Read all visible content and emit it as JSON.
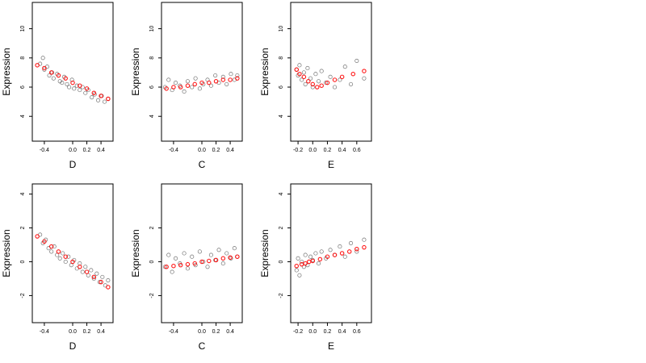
{
  "figure": {
    "ylabel": "Expression",
    "colors": {
      "observed": "#000000",
      "fitted": "#ff0000",
      "axis": "#000000",
      "background": "#ffffff"
    }
  },
  "chart_data": [
    {
      "type": "scatter",
      "xlabel": "D",
      "ylabel": "Expression",
      "xlim": [
        -0.57,
        0.57
      ],
      "ylim": [
        2.3,
        11.8
      ],
      "xticks": [
        -0.4,
        0.0,
        0.2,
        0.4
      ],
      "xtick_labels": [
        "-0.4",
        "0.0",
        "0.2",
        "0.4"
      ],
      "yticks": [
        4,
        6,
        8,
        10
      ],
      "ytick_labels": [
        "4",
        "6",
        "8",
        "10"
      ],
      "series": [
        {
          "kind": "observed",
          "x": [
            -0.46,
            -0.42,
            -0.4,
            -0.36,
            -0.33,
            -0.29,
            -0.27,
            -0.22,
            -0.18,
            -0.15,
            -0.12,
            -0.08,
            -0.05,
            -0.01,
            0.02,
            0.06,
            0.1,
            0.14,
            0.18,
            0.22,
            0.27,
            0.31,
            0.36,
            0.41,
            0.45,
            0.5
          ],
          "y": [
            7.6,
            8.0,
            7.2,
            7.4,
            6.8,
            7.0,
            6.6,
            6.9,
            6.4,
            6.3,
            6.7,
            6.2,
            6.0,
            6.5,
            5.9,
            6.1,
            5.8,
            6.0,
            5.6,
            5.8,
            5.3,
            5.5,
            5.1,
            5.4,
            5.0,
            5.2
          ]
        },
        {
          "kind": "fitted",
          "x": [
            -0.5,
            -0.4,
            -0.3,
            -0.2,
            -0.1,
            0.0,
            0.1,
            0.2,
            0.3,
            0.4,
            0.5
          ],
          "y": [
            7.5,
            7.3,
            7.0,
            6.8,
            6.6,
            6.3,
            6.1,
            5.9,
            5.6,
            5.4,
            5.2
          ]
        }
      ]
    },
    {
      "type": "scatter",
      "xlabel": "C",
      "ylabel": "Expression",
      "xlim": [
        -0.57,
        0.57
      ],
      "ylim": [
        2.3,
        11.8
      ],
      "xticks": [
        -0.4,
        0.0,
        0.2,
        0.4
      ],
      "xtick_labels": [
        "-0.4",
        "0.0",
        "0.2",
        "0.4"
      ],
      "yticks": [
        4,
        6,
        8,
        10
      ],
      "ytick_labels": [
        "4",
        "6",
        "8",
        "10"
      ],
      "series": [
        {
          "kind": "observed",
          "x": [
            -0.52,
            -0.47,
            -0.42,
            -0.37,
            -0.31,
            -0.25,
            -0.2,
            -0.14,
            -0.09,
            -0.03,
            0.02,
            0.08,
            0.13,
            0.19,
            0.24,
            0.3,
            0.35,
            0.41,
            0.46,
            0.5
          ],
          "y": [
            6.0,
            6.5,
            5.8,
            6.3,
            6.1,
            5.7,
            6.4,
            6.0,
            6.6,
            5.9,
            6.2,
            6.5,
            6.1,
            6.8,
            6.3,
            6.7,
            6.2,
            6.9,
            6.5,
            6.8
          ]
        },
        {
          "kind": "fitted",
          "x": [
            -0.5,
            -0.4,
            -0.3,
            -0.2,
            -0.1,
            0.0,
            0.1,
            0.2,
            0.3,
            0.4,
            0.5
          ],
          "y": [
            5.9,
            6.0,
            6.0,
            6.1,
            6.2,
            6.3,
            6.3,
            6.4,
            6.5,
            6.5,
            6.6
          ]
        }
      ]
    },
    {
      "type": "scatter",
      "xlabel": "E",
      "ylabel": "Expression",
      "xlim": [
        -0.3,
        0.8
      ],
      "ylim": [
        2.3,
        11.8
      ],
      "xticks": [
        -0.2,
        0.0,
        0.2,
        0.4,
        0.6
      ],
      "xtick_labels": [
        "-0.2",
        "0.0",
        "0.2",
        "0.4",
        "0.6"
      ],
      "yticks": [
        4,
        6,
        8,
        10
      ],
      "ytick_labels": [
        "4",
        "6",
        "8",
        "10"
      ],
      "series": [
        {
          "kind": "observed",
          "x": [
            -0.22,
            -0.2,
            -0.18,
            -0.15,
            -0.12,
            -0.1,
            -0.07,
            -0.03,
            0.0,
            0.04,
            0.08,
            0.12,
            0.18,
            0.24,
            0.3,
            0.37,
            0.44,
            0.52,
            0.6,
            0.7
          ],
          "y": [
            7.2,
            6.8,
            7.5,
            6.5,
            7.0,
            6.2,
            7.3,
            6.6,
            6.0,
            6.9,
            6.4,
            7.1,
            6.3,
            6.7,
            6.0,
            6.5,
            7.4,
            6.2,
            7.8,
            6.6
          ]
        },
        {
          "kind": "fitted",
          "x": [
            -0.22,
            -0.18,
            -0.12,
            -0.06,
            0.0,
            0.06,
            0.12,
            0.2,
            0.3,
            0.4,
            0.55,
            0.7
          ],
          "y": [
            7.2,
            6.9,
            6.7,
            6.4,
            6.2,
            6.0,
            6.1,
            6.3,
            6.5,
            6.7,
            6.9,
            7.1
          ]
        }
      ]
    },
    {
      "type": "scatter",
      "xlabel": "D",
      "ylabel": "Expression",
      "xlim": [
        -0.57,
        0.57
      ],
      "ylim": [
        -3.6,
        4.6
      ],
      "xticks": [
        -0.4,
        0.0,
        0.2,
        0.4
      ],
      "xtick_labels": [
        "-0.4",
        "0.0",
        "0.2",
        "0.4"
      ],
      "yticks": [
        -2,
        0,
        2,
        4
      ],
      "ytick_labels": [
        "-2",
        "0",
        "2",
        "4"
      ],
      "series": [
        {
          "kind": "observed",
          "x": [
            -0.46,
            -0.42,
            -0.38,
            -0.34,
            -0.3,
            -0.26,
            -0.22,
            -0.18,
            -0.14,
            -0.1,
            -0.06,
            -0.02,
            0.02,
            0.06,
            0.1,
            0.14,
            0.18,
            0.22,
            0.26,
            0.3,
            0.34,
            0.38,
            0.42,
            0.46,
            0.5
          ],
          "y": [
            1.6,
            1.1,
            1.3,
            0.8,
            0.6,
            0.9,
            0.4,
            0.2,
            0.5,
            0.0,
            0.3,
            -0.2,
            0.1,
            -0.4,
            -0.1,
            -0.6,
            -0.3,
            -0.8,
            -0.5,
            -1.0,
            -0.7,
            -1.2,
            -0.9,
            -1.4,
            -1.1
          ]
        },
        {
          "kind": "fitted",
          "x": [
            -0.5,
            -0.4,
            -0.3,
            -0.2,
            -0.1,
            0.0,
            0.1,
            0.2,
            0.3,
            0.4,
            0.5
          ],
          "y": [
            1.5,
            1.2,
            0.9,
            0.6,
            0.3,
            0.0,
            -0.3,
            -0.6,
            -0.9,
            -1.2,
            -1.5
          ]
        }
      ]
    },
    {
      "type": "scatter",
      "xlabel": "C",
      "ylabel": "Expression",
      "xlim": [
        -0.57,
        0.57
      ],
      "ylim": [
        -3.6,
        4.6
      ],
      "xticks": [
        -0.4,
        0.0,
        0.2,
        0.4
      ],
      "xtick_labels": [
        "-0.4",
        "0.0",
        "0.2",
        "0.4"
      ],
      "yticks": [
        -2,
        0,
        2
      ],
      "ytick_labels": [
        "-2",
        "0",
        "2"
      ],
      "series": [
        {
          "kind": "observed",
          "x": [
            -0.52,
            -0.47,
            -0.42,
            -0.37,
            -0.31,
            -0.25,
            -0.2,
            -0.14,
            -0.09,
            -0.03,
            0.02,
            0.08,
            0.13,
            0.19,
            0.24,
            0.3,
            0.35,
            0.41,
            0.46,
            0.5
          ],
          "y": [
            -0.3,
            0.4,
            -0.6,
            0.2,
            -0.1,
            0.5,
            -0.4,
            0.3,
            -0.2,
            0.6,
            0.0,
            -0.3,
            0.4,
            0.1,
            0.7,
            -0.1,
            0.5,
            0.2,
            0.8,
            0.3
          ]
        },
        {
          "kind": "fitted",
          "x": [
            -0.5,
            -0.4,
            -0.3,
            -0.2,
            -0.1,
            0.0,
            0.1,
            0.2,
            0.3,
            0.4,
            0.5
          ],
          "y": [
            -0.3,
            -0.25,
            -0.2,
            -0.15,
            -0.1,
            0.0,
            0.05,
            0.1,
            0.2,
            0.25,
            0.3
          ]
        }
      ]
    },
    {
      "type": "scatter",
      "xlabel": "E",
      "ylabel": "Expression",
      "xlim": [
        -0.3,
        0.8
      ],
      "ylim": [
        -3.6,
        4.6
      ],
      "xticks": [
        -0.2,
        0.0,
        0.2,
        0.4,
        0.6
      ],
      "xtick_labels": [
        "-0.2",
        "0.0",
        "0.2",
        "0.4",
        "0.6"
      ],
      "yticks": [
        -2,
        0,
        2,
        4
      ],
      "ytick_labels": [
        "-2",
        "0",
        "2",
        "4"
      ],
      "series": [
        {
          "kind": "observed",
          "x": [
            -0.22,
            -0.2,
            -0.18,
            -0.15,
            -0.12,
            -0.1,
            -0.07,
            -0.03,
            0.0,
            0.04,
            0.08,
            0.12,
            0.18,
            0.24,
            0.3,
            0.37,
            0.44,
            0.52,
            0.6,
            0.7
          ],
          "y": [
            -0.5,
            0.2,
            -0.8,
            0.0,
            -0.3,
            0.4,
            -0.2,
            0.3,
            0.1,
            0.5,
            -0.1,
            0.6,
            0.2,
            0.7,
            0.4,
            0.9,
            0.3,
            1.1,
            0.6,
            1.3
          ]
        },
        {
          "kind": "fitted",
          "x": [
            -0.22,
            -0.15,
            -0.1,
            -0.05,
            0.0,
            0.1,
            0.2,
            0.3,
            0.4,
            0.5,
            0.6,
            0.7
          ],
          "y": [
            -0.25,
            -0.15,
            -0.1,
            0.0,
            0.05,
            0.15,
            0.3,
            0.4,
            0.5,
            0.6,
            0.75,
            0.85
          ]
        }
      ]
    }
  ]
}
